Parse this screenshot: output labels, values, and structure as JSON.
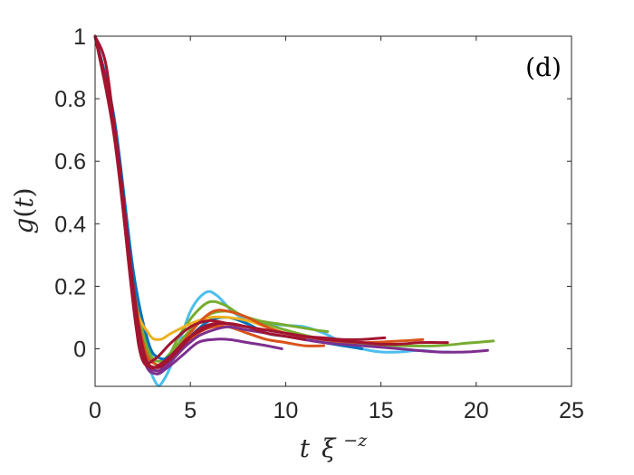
{
  "chart_data": {
    "type": "line",
    "title": "",
    "panel_label": "(d)",
    "xlabel": "t ξ^{-z}",
    "xlabel_parts": {
      "t": "t",
      "xi": "ξ",
      "sup": "−z"
    },
    "ylabel": "g(t)",
    "ylabel_parts": {
      "g": "g",
      "open": "(",
      "t": "t",
      "close": ")"
    },
    "xlim": [
      0,
      25
    ],
    "ylim": [
      -0.12,
      1
    ],
    "xticks": [
      0,
      5,
      10,
      15,
      20,
      25
    ],
    "xtick_labels": [
      "0",
      "5",
      "10",
      "15",
      "20",
      "25"
    ],
    "yticks": [
      0,
      0.2,
      0.4,
      0.6,
      0.8,
      1
    ],
    "ytick_labels": [
      "0",
      "0.2",
      "0.4",
      "0.6",
      "0.8",
      "1"
    ],
    "grid": false,
    "box": true,
    "series": [
      {
        "name": "series-1",
        "color": "#4DBEEE",
        "x": [
          0,
          1,
          2,
          2.6,
          3.2,
          3.6,
          4.2,
          5,
          5.8,
          6.4,
          7.2,
          8,
          9,
          10,
          11,
          12,
          13,
          14,
          15,
          16,
          17,
          18,
          18.6
        ],
        "y": [
          1,
          0.72,
          0.25,
          0.0,
          -0.11,
          -0.1,
          -0.02,
          0.12,
          0.18,
          0.17,
          0.12,
          0.09,
          0.08,
          0.075,
          0.07,
          0.05,
          0.02,
          0.0,
          -0.01,
          -0.01,
          -0.005,
          -0.01,
          -0.01
        ]
      },
      {
        "name": "series-2",
        "color": "#77AC30",
        "x": [
          0,
          1,
          2,
          2.6,
          3.2,
          3.8,
          4.4,
          5.2,
          6,
          6.8,
          7.6,
          8.6,
          9.6,
          10.6,
          11.6,
          12.2
        ],
        "y": [
          1,
          0.7,
          0.2,
          0.02,
          -0.05,
          -0.03,
          0.04,
          0.11,
          0.15,
          0.14,
          0.11,
          0.09,
          0.08,
          0.07,
          0.06,
          0.055
        ]
      },
      {
        "name": "series-3",
        "color": "#77AC30",
        "x": [
          0,
          1,
          2,
          2.8,
          3.4,
          4,
          5,
          6,
          7,
          8,
          10,
          12,
          14,
          16,
          18,
          19.5,
          20.9
        ],
        "y": [
          1,
          0.72,
          0.22,
          0.0,
          -0.04,
          -0.01,
          0.06,
          0.11,
          0.12,
          0.1,
          0.06,
          0.03,
          0.015,
          0.01,
          0.01,
          0.018,
          0.025
        ]
      },
      {
        "name": "series-4",
        "color": "#0072BD",
        "x": [
          0,
          1,
          2,
          2.8,
          3.4,
          4,
          5,
          6,
          7,
          8,
          9,
          10,
          11,
          12,
          13,
          14
        ],
        "y": [
          1,
          0.74,
          0.25,
          0.02,
          -0.03,
          -0.02,
          0.04,
          0.09,
          0.1,
          0.08,
          0.05,
          0.04,
          0.03,
          0.02,
          0.01,
          0.0
        ]
      },
      {
        "name": "series-5",
        "color": "#EDB120",
        "x": [
          0,
          1,
          2,
          2.8,
          3.4,
          4,
          5,
          6,
          7,
          8,
          9,
          10,
          11,
          12,
          12.5
        ],
        "y": [
          1,
          0.7,
          0.18,
          0.05,
          0.03,
          0.05,
          0.08,
          0.1,
          0.1,
          0.09,
          0.07,
          0.05,
          0.04,
          0.03,
          0.03
        ]
      },
      {
        "name": "series-6",
        "color": "#D95319",
        "x": [
          0,
          1,
          2,
          2.6,
          3.2,
          3.8,
          4.6,
          5.4,
          6.2,
          7,
          8,
          9,
          10,
          12,
          14,
          16,
          17.2
        ],
        "y": [
          1,
          0.71,
          0.2,
          0.0,
          -0.05,
          -0.04,
          0.02,
          0.08,
          0.12,
          0.12,
          0.1,
          0.07,
          0.05,
          0.03,
          0.02,
          0.025,
          0.03
        ]
      },
      {
        "name": "series-7",
        "color": "#D95319",
        "x": [
          0,
          1,
          2,
          2.6,
          3.2,
          3.8,
          4.6,
          5.4,
          6.2,
          7,
          8,
          9,
          10,
          11,
          12
        ],
        "y": [
          1,
          0.7,
          0.18,
          -0.02,
          -0.07,
          -0.05,
          0.0,
          0.05,
          0.07,
          0.07,
          0.05,
          0.03,
          0.02,
          0.01,
          0.01
        ]
      },
      {
        "name": "series-8",
        "color": "#7E2F8E",
        "x": [
          0,
          1,
          2,
          2.6,
          3.2,
          3.8,
          4.6,
          5.4,
          6.2,
          7,
          8,
          9,
          10,
          12,
          14,
          16,
          18,
          19.5,
          20.6
        ],
        "y": [
          1,
          0.72,
          0.2,
          -0.03,
          -0.07,
          -0.05,
          0.0,
          0.04,
          0.06,
          0.07,
          0.06,
          0.05,
          0.04,
          0.02,
          0.01,
          0.0,
          -0.01,
          -0.01,
          -0.005
        ]
      },
      {
        "name": "series-9",
        "color": "#7E2F8E",
        "x": [
          0,
          1,
          2,
          2.6,
          3.2,
          3.8,
          4.6,
          5.4,
          6.2,
          7,
          8,
          9,
          9.8
        ],
        "y": [
          1,
          0.7,
          0.16,
          -0.04,
          -0.08,
          -0.06,
          -0.02,
          0.02,
          0.03,
          0.03,
          0.02,
          0.01,
          0.0
        ]
      },
      {
        "name": "series-10",
        "color": "#A2142F",
        "x": [
          0,
          1,
          2,
          2.6,
          3.2,
          3.8,
          4.6,
          5.4,
          6.2,
          7,
          8,
          9,
          10,
          11,
          12,
          13,
          14,
          15,
          16,
          17,
          18,
          18.5
        ],
        "y": [
          1,
          0.72,
          0.2,
          -0.02,
          -0.06,
          -0.04,
          0.01,
          0.06,
          0.08,
          0.08,
          0.07,
          0.06,
          0.05,
          0.04,
          0.03,
          0.025,
          0.02,
          0.015,
          0.015,
          0.02,
          0.02,
          0.02
        ]
      },
      {
        "name": "series-11",
        "color": "#A2142F",
        "x": [
          0,
          1,
          2,
          2.4,
          2.9,
          3.4,
          4,
          4.8,
          5.6,
          6.4,
          7.2,
          8,
          9,
          10,
          11,
          12,
          13,
          14,
          15.2
        ],
        "y": [
          1,
          0.68,
          0.15,
          -0.02,
          -0.06,
          -0.05,
          -0.02,
          0.03,
          0.06,
          0.08,
          0.08,
          0.07,
          0.06,
          0.05,
          0.04,
          0.035,
          0.03,
          0.03,
          0.035
        ]
      },
      {
        "name": "series-12",
        "color": "#A2142F",
        "x": [
          0,
          0.6,
          1.2,
          1.8,
          2.2,
          2.6,
          3.2,
          4,
          5,
          6,
          7,
          8,
          9,
          10,
          11
        ],
        "y": [
          1,
          0.9,
          0.6,
          0.25,
          0.05,
          -0.04,
          -0.03,
          0.02,
          0.07,
          0.09,
          0.08,
          0.07,
          0.05,
          0.04,
          0.03
        ]
      }
    ]
  }
}
